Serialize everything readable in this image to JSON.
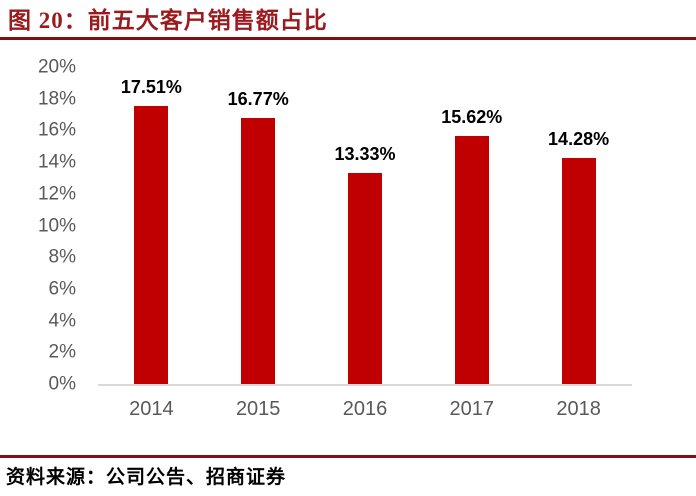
{
  "header": {
    "title": "图 20：前五大客户销售额占比"
  },
  "footer": {
    "source": "资料来源：公司公告、招商证券"
  },
  "colors": {
    "title_red": "#9A1B1E",
    "rule_red": "#7F0F12",
    "bar_red": "#C00000",
    "axis_line_gray": "#D9D9D9",
    "tick_gray": "#595959",
    "data_label_black": "#000000"
  },
  "chart_data": {
    "type": "bar",
    "title": "前五大客户销售额占比",
    "categories": [
      "2014",
      "2015",
      "2016",
      "2017",
      "2018"
    ],
    "values": [
      17.51,
      16.77,
      13.33,
      15.62,
      14.28
    ],
    "value_labels": [
      "17.51%",
      "16.77%",
      "13.33%",
      "15.62%",
      "14.28%"
    ],
    "xlabel": "",
    "ylabel": "",
    "ylim": [
      0,
      20
    ],
    "ytick_step": 2,
    "ytick_labels": [
      "0%",
      "2%",
      "4%",
      "6%",
      "8%",
      "10%",
      "12%",
      "14%",
      "16%",
      "18%",
      "20%"
    ],
    "grid": false,
    "legend": "none",
    "bar_color": "#C00000"
  }
}
